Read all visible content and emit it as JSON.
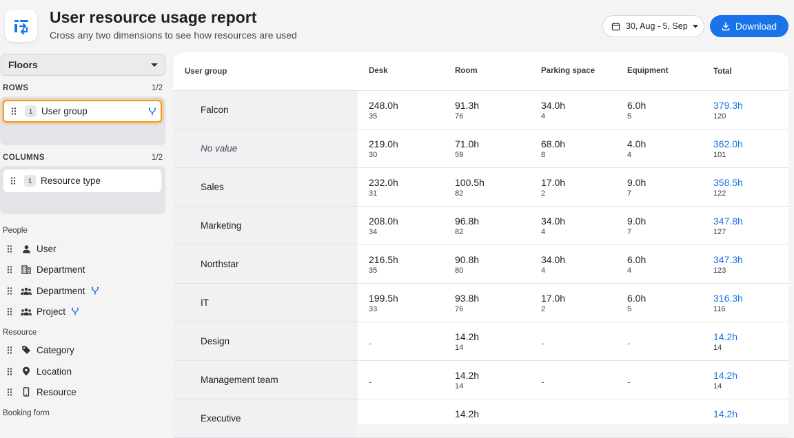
{
  "header": {
    "title": "User resource usage report",
    "subtitle": "Cross any two dimensions to see how resources are used",
    "date_range": "30, Aug - 5, Sep",
    "download_label": "Download"
  },
  "sidebar": {
    "floors_select": "Floors",
    "rows_label": "ROWS",
    "rows_count": "1/2",
    "rows_pill": {
      "num": "1",
      "label": "User group"
    },
    "columns_label": "COLUMNS",
    "columns_count": "1/2",
    "columns_pill": {
      "num": "1",
      "label": "Resource type"
    },
    "groups": [
      {
        "label": "People",
        "items": [
          {
            "label": "User",
            "icon": "person-icon"
          },
          {
            "label": "Department",
            "icon": "building-icon"
          },
          {
            "label": "Department",
            "icon": "people-group-icon",
            "merge": true
          },
          {
            "label": "Project",
            "icon": "people-group-icon",
            "merge": true
          }
        ]
      },
      {
        "label": "Resource",
        "items": [
          {
            "label": "Category",
            "icon": "tag-icon"
          },
          {
            "label": "Location",
            "icon": "location-pin-icon"
          },
          {
            "label": "Resource",
            "icon": "device-icon"
          }
        ]
      },
      {
        "label": "Booking form",
        "items": []
      }
    ]
  },
  "table": {
    "columns": [
      "User group",
      "Desk",
      "Room",
      "Parking space",
      "Equipment",
      "Total"
    ],
    "rows": [
      {
        "label": "Falcon",
        "italic": false,
        "cells": [
          {
            "v": "248.0h",
            "c": "35"
          },
          {
            "v": "91.3h",
            "c": "76"
          },
          {
            "v": "34.0h",
            "c": "4"
          },
          {
            "v": "6.0h",
            "c": "5"
          },
          {
            "v": "379.3h",
            "c": "120"
          }
        ]
      },
      {
        "label": "No value",
        "italic": true,
        "cells": [
          {
            "v": "219.0h",
            "c": "30"
          },
          {
            "v": "71.0h",
            "c": "59"
          },
          {
            "v": "68.0h",
            "c": "8"
          },
          {
            "v": "4.0h",
            "c": "4"
          },
          {
            "v": "362.0h",
            "c": "101"
          }
        ]
      },
      {
        "label": "Sales",
        "italic": false,
        "cells": [
          {
            "v": "232.0h",
            "c": "31"
          },
          {
            "v": "100.5h",
            "c": "82"
          },
          {
            "v": "17.0h",
            "c": "2"
          },
          {
            "v": "9.0h",
            "c": "7"
          },
          {
            "v": "358.5h",
            "c": "122"
          }
        ]
      },
      {
        "label": "Marketing",
        "italic": false,
        "cells": [
          {
            "v": "208.0h",
            "c": "34"
          },
          {
            "v": "96.8h",
            "c": "82"
          },
          {
            "v": "34.0h",
            "c": "4"
          },
          {
            "v": "9.0h",
            "c": "7"
          },
          {
            "v": "347.8h",
            "c": "127"
          }
        ]
      },
      {
        "label": "Northstar",
        "italic": false,
        "cells": [
          {
            "v": "216.5h",
            "c": "35"
          },
          {
            "v": "90.8h",
            "c": "80"
          },
          {
            "v": "34.0h",
            "c": "4"
          },
          {
            "v": "6.0h",
            "c": "4"
          },
          {
            "v": "347.3h",
            "c": "123"
          }
        ]
      },
      {
        "label": "IT",
        "italic": false,
        "cells": [
          {
            "v": "199.5h",
            "c": "33"
          },
          {
            "v": "93.8h",
            "c": "76"
          },
          {
            "v": "17.0h",
            "c": "2"
          },
          {
            "v": "6.0h",
            "c": "5"
          },
          {
            "v": "316.3h",
            "c": "116"
          }
        ]
      },
      {
        "label": "Design",
        "italic": false,
        "cells": [
          {
            "v": "-",
            "c": ""
          },
          {
            "v": "14.2h",
            "c": "14"
          },
          {
            "v": "-",
            "c": ""
          },
          {
            "v": "-",
            "c": ""
          },
          {
            "v": "14.2h",
            "c": "14"
          }
        ]
      },
      {
        "label": "Management team",
        "italic": false,
        "cells": [
          {
            "v": "-",
            "c": ""
          },
          {
            "v": "14.2h",
            "c": "14"
          },
          {
            "v": "-",
            "c": ""
          },
          {
            "v": "-",
            "c": ""
          },
          {
            "v": "14.2h",
            "c": "14"
          }
        ]
      },
      {
        "label": "Executive",
        "italic": false,
        "cells": [
          {
            "v": "",
            "c": ""
          },
          {
            "v": "14.2h",
            "c": ""
          },
          {
            "v": "",
            "c": ""
          },
          {
            "v": "",
            "c": ""
          },
          {
            "v": "14.2h",
            "c": ""
          }
        ]
      }
    ]
  },
  "colors": {
    "accent": "#1a73e8",
    "selected_outline": "#f29a12"
  }
}
